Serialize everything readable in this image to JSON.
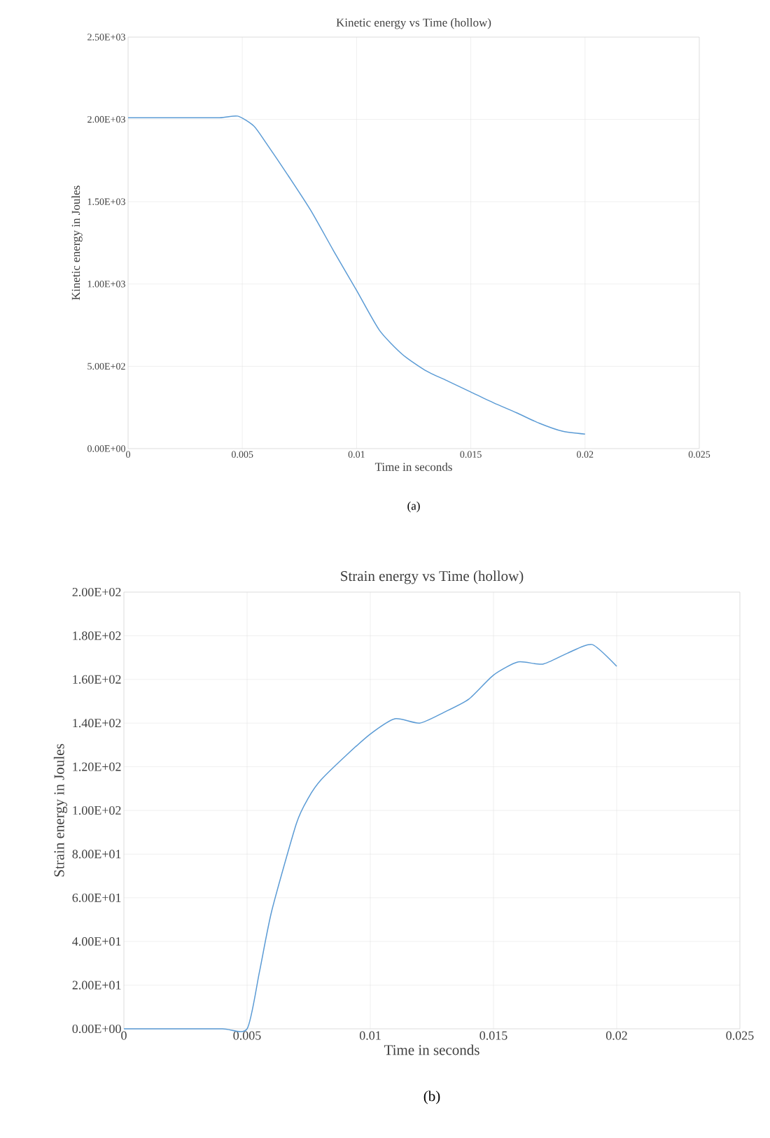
{
  "chart_data": [
    {
      "type": "line",
      "title": "Kinetic energy vs Time (hollow)",
      "xlabel": "Time  in seconds",
      "ylabel": "Kinetic energy in Joules",
      "color": "#5b9bd5",
      "grid": true,
      "x": [
        0,
        0.002,
        0.004,
        0.0048,
        0.0055,
        0.006,
        0.007,
        0.008,
        0.009,
        0.01,
        0.011,
        0.012,
        0.013,
        0.014,
        0.015,
        0.016,
        0.017,
        0.018,
        0.019,
        0.02
      ],
      "values": [
        2010,
        2010,
        2010,
        2020,
        1960,
        1865,
        1660,
        1446,
        1200,
        961,
        719,
        573,
        476,
        410,
        344,
        278,
        218,
        154,
        106,
        88
      ],
      "xlim": [
        0,
        0.025
      ],
      "ylim": [
        0,
        2500
      ],
      "xticks": [
        {
          "value": 0,
          "label": "0"
        },
        {
          "value": 0.005,
          "label": "0.005"
        },
        {
          "value": 0.01,
          "label": "0.01"
        },
        {
          "value": 0.015,
          "label": "0.015"
        },
        {
          "value": 0.02,
          "label": "0.02"
        },
        {
          "value": 0.025,
          "label": "0.025"
        }
      ],
      "yticks": [
        {
          "value": 0,
          "label": "0.00E+00"
        },
        {
          "value": 500,
          "label": "5.00E+02"
        },
        {
          "value": 1000,
          "label": "1.00E+03"
        },
        {
          "value": 1500,
          "label": "1.50E+03"
        },
        {
          "value": 2000,
          "label": "2.00E+03"
        },
        {
          "value": 2500,
          "label": "2.50E+03"
        }
      ],
      "annotations": [
        "(a)"
      ]
    },
    {
      "type": "line",
      "title": "Strain energy vs Time (hollow)",
      "xlabel": "Time in seconds",
      "ylabel": "Strain energy in Joules",
      "color": "#5b9bd5",
      "grid": true,
      "x": [
        0,
        0.002,
        0.004,
        0.005,
        0.0055,
        0.006,
        0.007,
        0.0075,
        0.008,
        0.009,
        0.01,
        0.011,
        0.012,
        0.013,
        0.014,
        0.015,
        0.016,
        0.017,
        0.018,
        0.019,
        0.02
      ],
      "values": [
        0,
        0,
        0,
        0,
        26,
        54,
        94,
        106,
        114,
        125,
        135,
        142,
        140,
        145,
        151,
        162,
        168,
        167,
        172,
        176,
        166
      ],
      "xlim": [
        0,
        0.025
      ],
      "ylim": [
        0,
        200
      ],
      "xticks": [
        {
          "value": 0,
          "label": "0"
        },
        {
          "value": 0.005,
          "label": "0.005"
        },
        {
          "value": 0.01,
          "label": "0.01"
        },
        {
          "value": 0.015,
          "label": "0.015"
        },
        {
          "value": 0.02,
          "label": "0.02"
        },
        {
          "value": 0.025,
          "label": "0.025"
        }
      ],
      "yticks": [
        {
          "value": 0,
          "label": "0.00E+00"
        },
        {
          "value": 20,
          "label": "2.00E+01"
        },
        {
          "value": 40,
          "label": "4.00E+01"
        },
        {
          "value": 60,
          "label": "6.00E+01"
        },
        {
          "value": 80,
          "label": "8.00E+01"
        },
        {
          "value": 100,
          "label": "1.00E+02"
        },
        {
          "value": 120,
          "label": "1.20E+02"
        },
        {
          "value": 140,
          "label": "1.40E+02"
        },
        {
          "value": 160,
          "label": "1.60E+02"
        },
        {
          "value": 180,
          "label": "1.80E+02"
        },
        {
          "value": 200,
          "label": "2.00E+02"
        }
      ],
      "annotations": [
        "(b)"
      ]
    }
  ]
}
